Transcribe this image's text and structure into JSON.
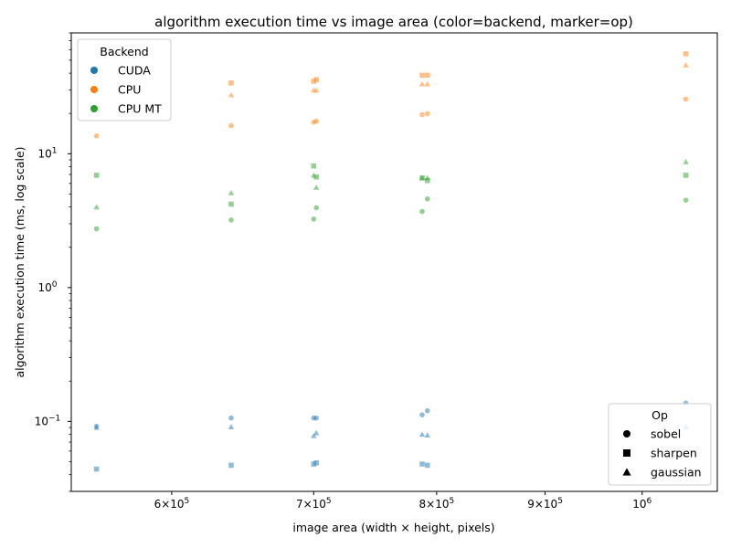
{
  "chart_data": {
    "type": "scatter",
    "title": "algorithm execution time vs image area (color=backend, marker=op)",
    "xlabel": "image area (width × height, pixels)",
    "ylabel": "algorithm execution time (ms, log scale)",
    "xscale": "log",
    "yscale": "log",
    "xlim": [
      538000,
      1085000
    ],
    "ylim": [
      0.03,
      80
    ],
    "x_ticks": [
      {
        "value": 600000,
        "base": "6",
        "mult": "×",
        "ten": "10",
        "exp": "5"
      },
      {
        "value": 700000,
        "base": "7",
        "mult": "×",
        "ten": "10",
        "exp": "5"
      },
      {
        "value": 800000,
        "base": "8",
        "mult": "×",
        "ten": "10",
        "exp": "5"
      },
      {
        "value": 900000,
        "base": "9",
        "mult": "×",
        "ten": "10",
        "exp": "5"
      },
      {
        "value": 1000000,
        "base": "",
        "mult": "",
        "ten": "10",
        "exp": "6"
      }
    ],
    "y_ticks": [
      {
        "value": 0.1,
        "ten": "10",
        "exp": "−1"
      },
      {
        "value": 1,
        "ten": "10",
        "exp": "0"
      },
      {
        "value": 10,
        "ten": "10",
        "exp": "1"
      }
    ],
    "grid": false,
    "backend_legend": {
      "title": "Backend",
      "position": "top-left",
      "entries": [
        {
          "name": "CUDA",
          "color": "#1f77b4"
        },
        {
          "name": "CPU",
          "color": "#ff7f0e"
        },
        {
          "name": "CPU MT",
          "color": "#2ca02c"
        }
      ]
    },
    "op_legend": {
      "title": "Op",
      "position": "bottom-right",
      "entries": [
        {
          "name": "sobel",
          "marker": "circle"
        },
        {
          "name": "sharpen",
          "marker": "square"
        },
        {
          "name": "gaussian",
          "marker": "triangle"
        }
      ]
    },
    "series": [
      {
        "backend": "CUDA",
        "op": "sobel",
        "color": "#1f77b4",
        "marker": "circle",
        "x": [
          552960,
          640000,
          700000,
          702000,
          787500,
          792000,
          1048576
        ],
        "y": [
          0.092,
          0.106,
          0.106,
          0.106,
          0.112,
          0.12,
          0.137
        ]
      },
      {
        "backend": "CUDA",
        "op": "sharpen",
        "color": "#1f77b4",
        "marker": "square",
        "x": [
          552960,
          640000,
          700000,
          702000,
          787500,
          792000
        ],
        "y": [
          0.044,
          0.047,
          0.048,
          0.049,
          0.048,
          0.047
        ]
      },
      {
        "backend": "CUDA",
        "op": "gaussian",
        "color": "#1f77b4",
        "marker": "triangle",
        "x": [
          552960,
          640000,
          700000,
          702000,
          787500,
          792000,
          1048576
        ],
        "y": [
          0.09,
          0.091,
          0.078,
          0.082,
          0.08,
          0.079,
          0.091
        ]
      },
      {
        "backend": "CPU",
        "op": "sobel",
        "color": "#ff7f0e",
        "marker": "circle",
        "x": [
          552960,
          640000,
          700000,
          702000,
          787500,
          792000,
          1048576
        ],
        "y": [
          13.6,
          16.2,
          17.2,
          17.5,
          19.6,
          19.9,
          25.6
        ]
      },
      {
        "backend": "CPU",
        "op": "sharpen",
        "color": "#ff7f0e",
        "marker": "square",
        "x": [
          640000,
          700000,
          702000,
          787500,
          792000,
          1048576
        ],
        "y": [
          33.8,
          34.8,
          35.8,
          38.6,
          38.6,
          55.8
        ]
      },
      {
        "backend": "CPU",
        "op": "gaussian",
        "color": "#ff7f0e",
        "marker": "triangle",
        "x": [
          640000,
          700000,
          702000,
          787500,
          792000,
          1048576
        ],
        "y": [
          27.5,
          29.8,
          29.8,
          33.2,
          33.2,
          46.0
        ]
      },
      {
        "backend": "CPU MT",
        "op": "sobel",
        "color": "#2ca02c",
        "marker": "circle",
        "x": [
          552960,
          640000,
          700000,
          702000,
          787500,
          792000,
          1048576
        ],
        "y": [
          2.75,
          3.2,
          3.25,
          3.95,
          3.7,
          4.6,
          4.5
        ]
      },
      {
        "backend": "CPU MT",
        "op": "sharpen",
        "color": "#2ca02c",
        "marker": "square",
        "x": [
          552960,
          640000,
          700000,
          702000,
          787500,
          792000,
          1048576
        ],
        "y": [
          6.9,
          4.2,
          8.1,
          6.7,
          6.6,
          6.3,
          6.9
        ]
      },
      {
        "backend": "CPU MT",
        "op": "gaussian",
        "color": "#2ca02c",
        "marker": "triangle",
        "x": [
          552960,
          640000,
          700000,
          702000,
          787500,
          792000,
          1048576
        ],
        "y": [
          4.0,
          5.1,
          6.9,
          5.6,
          6.6,
          6.6,
          8.7
        ]
      }
    ]
  }
}
